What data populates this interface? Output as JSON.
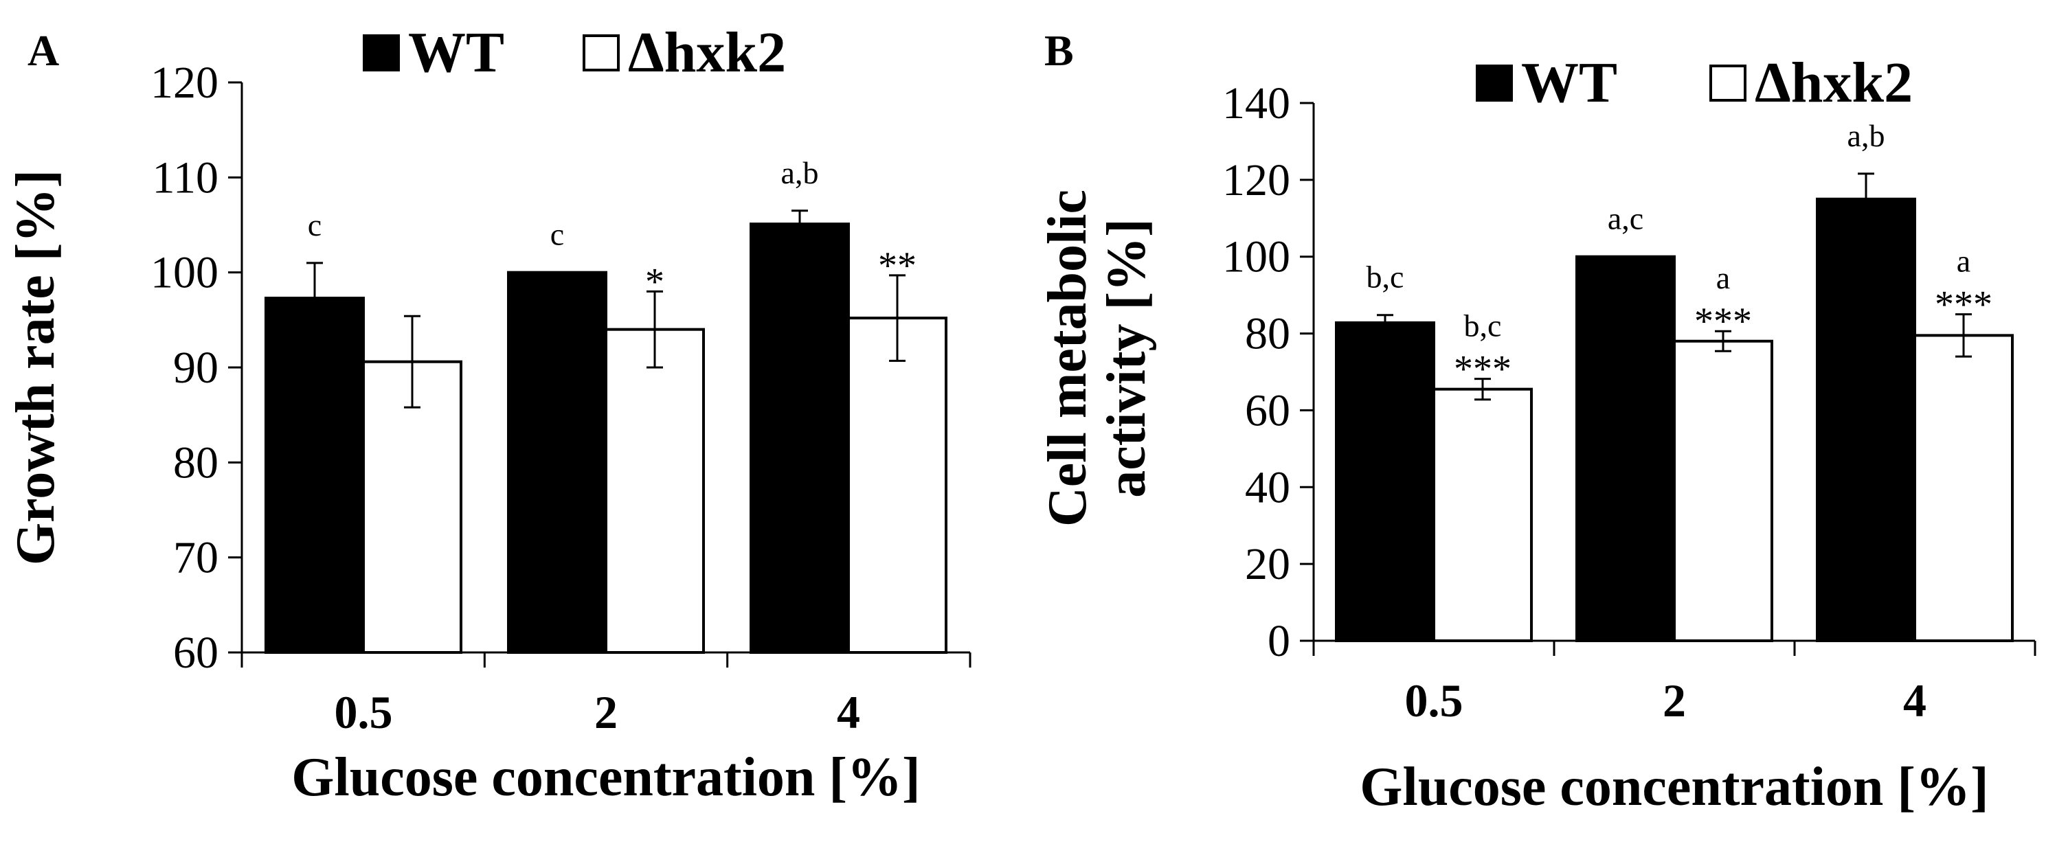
{
  "chart_data": [
    {
      "type": "bar",
      "panel_label": "A",
      "xlabel": "Glucose concentration [%]",
      "ylabel": "Growth rate [%]",
      "ylim": [
        60,
        120
      ],
      "yticks": [
        60,
        70,
        80,
        90,
        100,
        110,
        120
      ],
      "categories": [
        "0.5",
        "2",
        "4"
      ],
      "legend": {
        "position": "top",
        "entries": [
          "WT",
          "Δhxk2"
        ]
      },
      "series": [
        {
          "name": "WT",
          "color": "#000000",
          "values": [
            97.3,
            100,
            105.1
          ],
          "errors": [
            3.7,
            0,
            1.4
          ],
          "letters": [
            "c",
            "c",
            "a,b"
          ],
          "stars": [
            "",
            "",
            ""
          ]
        },
        {
          "name": "Δhxk2",
          "color": "#ffffff",
          "values": [
            90.6,
            94,
            95.2
          ],
          "errors": [
            4.8,
            4,
            4.5
          ],
          "letters": [
            "",
            "",
            ""
          ],
          "stars": [
            "",
            "*",
            "**"
          ]
        }
      ]
    },
    {
      "type": "bar",
      "panel_label": "B",
      "xlabel": "Glucose concentration [%]",
      "ylabel": "Cell metabolic activity [%]",
      "ylabel_lines": [
        "Cell metabolic",
        "activity [%]"
      ],
      "ylim": [
        0,
        140
      ],
      "yticks": [
        0,
        20,
        40,
        60,
        80,
        100,
        120,
        140
      ],
      "categories": [
        "0.5",
        "2",
        "4"
      ],
      "legend": {
        "position": "top",
        "entries": [
          "WT",
          "Δhxk2"
        ]
      },
      "series": [
        {
          "name": "WT",
          "color": "#000000",
          "values": [
            82.8,
            100,
            115
          ],
          "errors": [
            2,
            0,
            6.6
          ],
          "letters": [
            "b,c",
            "a,c",
            "a,b"
          ],
          "stars": [
            "",
            "",
            ""
          ]
        },
        {
          "name": "Δhxk2",
          "color": "#ffffff",
          "values": [
            65.5,
            78,
            79.5
          ],
          "errors": [
            2.7,
            2.6,
            5.5
          ],
          "letters": [
            "b,c",
            "a",
            "a"
          ],
          "stars": [
            "***",
            "***",
            "***"
          ]
        }
      ]
    }
  ]
}
